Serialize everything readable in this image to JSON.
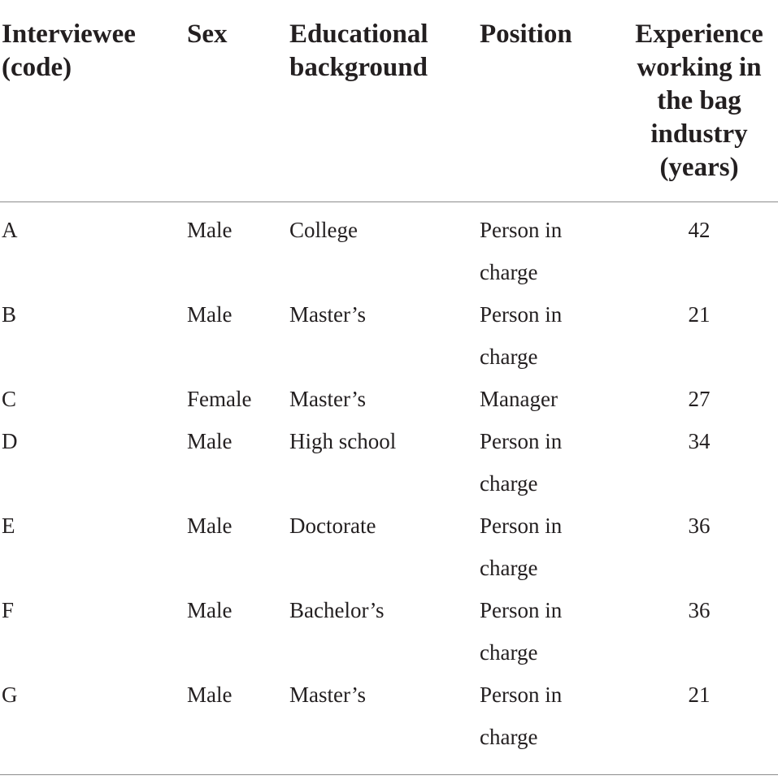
{
  "table": {
    "headers": [
      "Interviewee (code)",
      "Sex",
      "Educational background",
      "Position",
      "Experience working in the bag industry (years)"
    ],
    "rows": [
      {
        "code": "A",
        "sex": "Male",
        "education": "College",
        "position": "Person in charge",
        "experience": "42"
      },
      {
        "code": "B",
        "sex": "Male",
        "education": "Master’s",
        "position": "Person in charge",
        "experience": "21"
      },
      {
        "code": "C",
        "sex": "Female",
        "education": "Master’s",
        "position": "Manager",
        "experience": "27"
      },
      {
        "code": "D",
        "sex": "Male",
        "education": "High school",
        "position": "Person in charge",
        "experience": "34"
      },
      {
        "code": "E",
        "sex": "Male",
        "education": "Doctorate",
        "position": "Person in charge",
        "experience": "36"
      },
      {
        "code": "F",
        "sex": "Male",
        "education": "Bachelor’s",
        "position": "Person in charge",
        "experience": "36"
      },
      {
        "code": "G",
        "sex": "Male",
        "education": "Master’s",
        "position": "Person in charge",
        "experience": "21"
      }
    ]
  }
}
